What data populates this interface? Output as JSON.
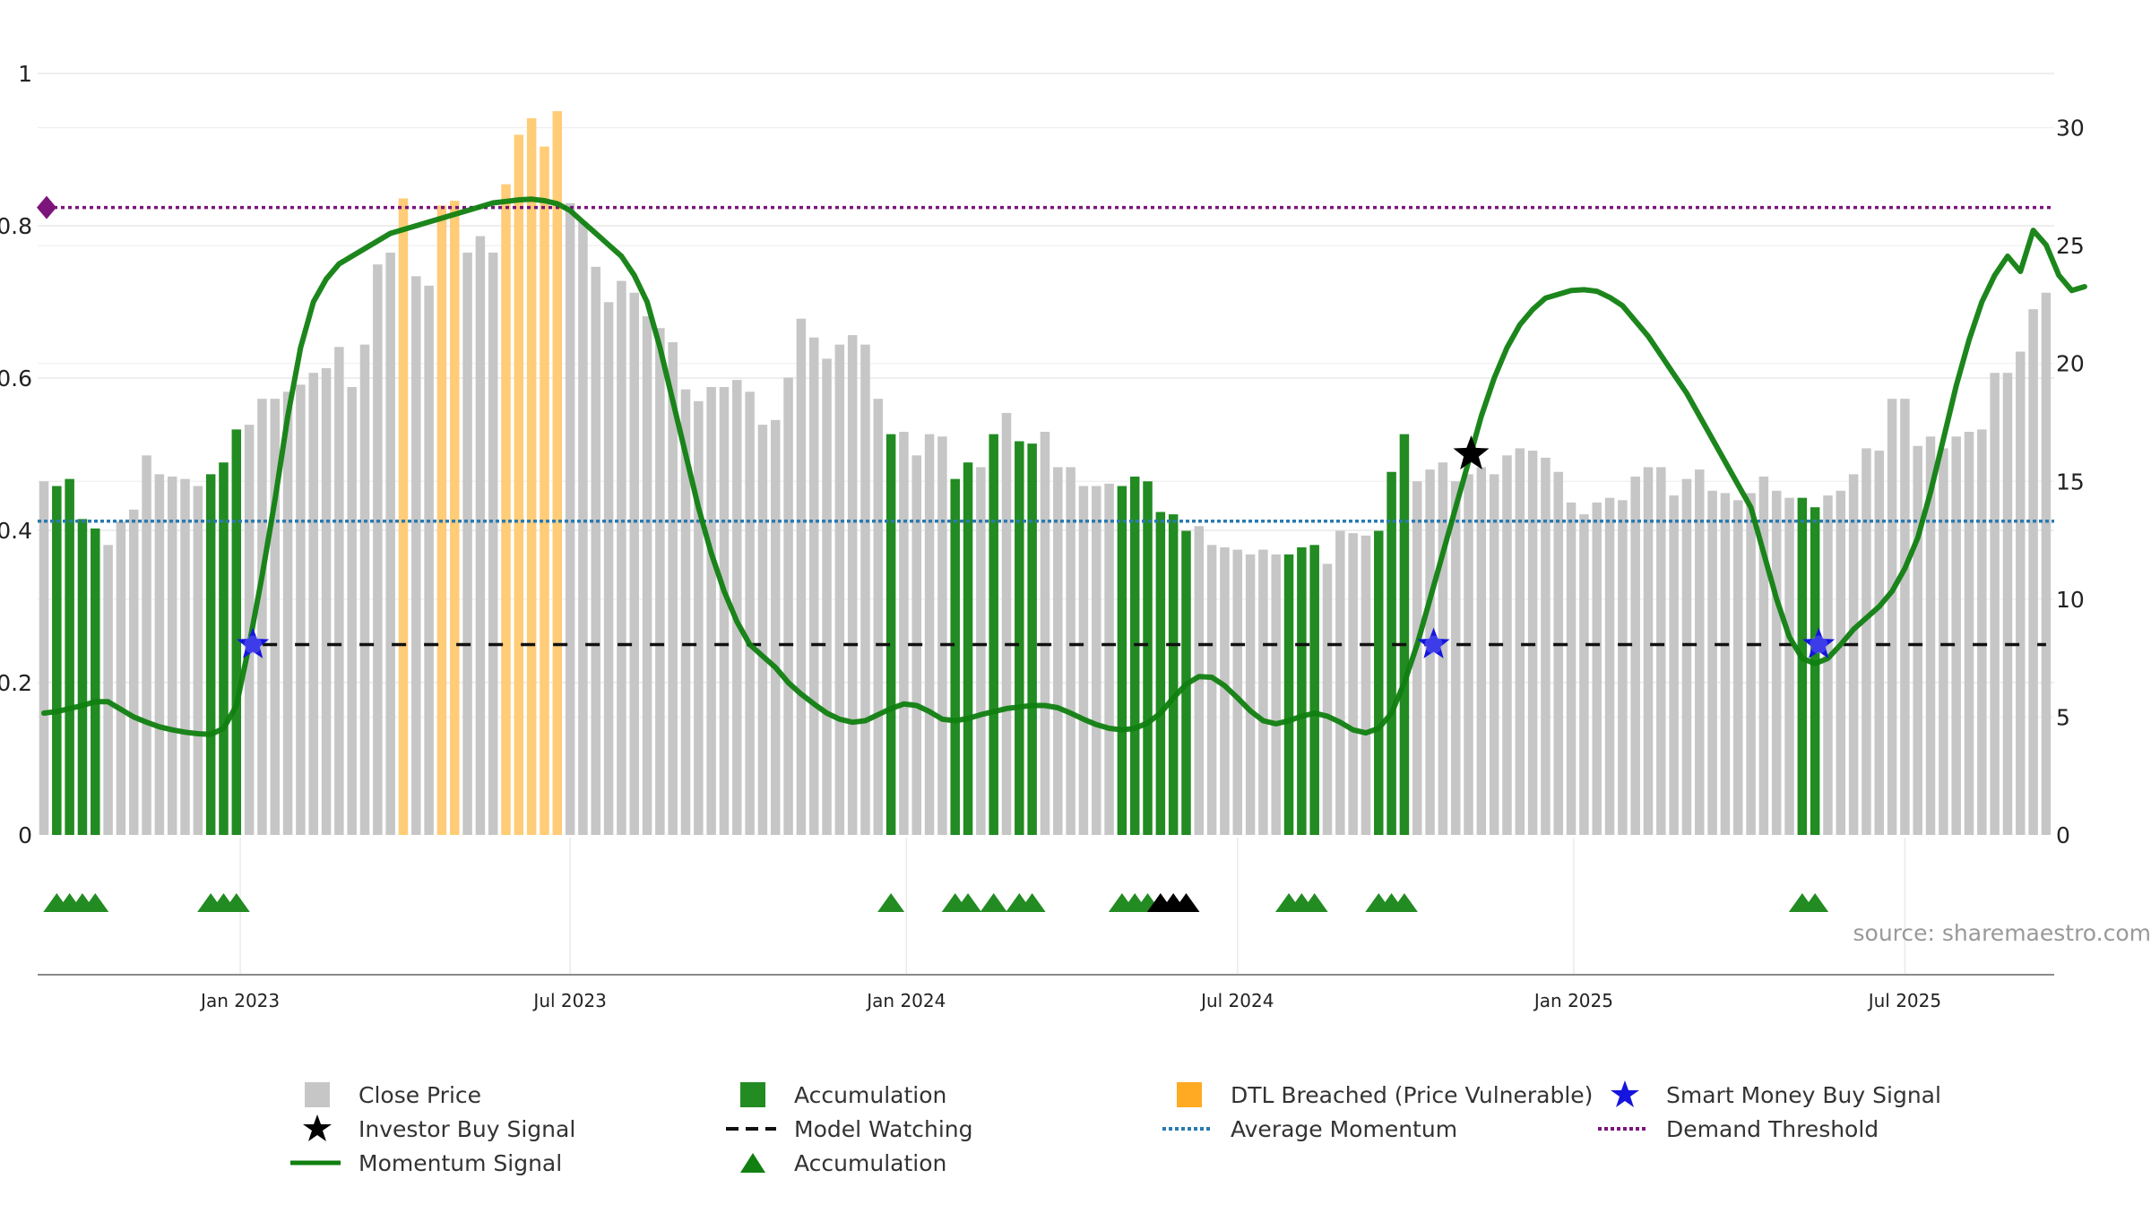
{
  "chart_data": {
    "type": "bar",
    "source_text": "source: sharemaestro.com",
    "left_axis": {
      "ticks": [
        0,
        0.2,
        0.4,
        0.6,
        0.8,
        1
      ],
      "labels": [
        "0",
        "0.2",
        "0.4",
        "0.6",
        "0.8",
        "1"
      ],
      "ylim": [
        0,
        1
      ]
    },
    "right_axis": {
      "ticks": [
        0,
        5,
        10,
        15,
        20,
        25,
        30
      ],
      "labels": [
        "0",
        "5",
        "10",
        "15",
        "20",
        "25",
        "30"
      ],
      "ylim": [
        0,
        32.3
      ]
    },
    "x_axis": {
      "labels": [
        "Jan 2023",
        "Jul 2023",
        "Jan 2024",
        "Jul 2024",
        "Jan 2025",
        "Jul 2025"
      ],
      "label_bar_index": [
        15.3,
        41,
        67.2,
        93,
        119.2,
        145
      ],
      "bar_count": 157
    },
    "close_price_bars": [
      15,
      14.8,
      15.1,
      13.4,
      13,
      12.3,
      13.3,
      13.8,
      16.1,
      15.3,
      15.2,
      15.1,
      14.8,
      15.3,
      15.8,
      17.2,
      17.4,
      18.5,
      18.5,
      18.8,
      19.1,
      19.6,
      19.8,
      20.7,
      19,
      20.8,
      24.2,
      24.7,
      27,
      23.7,
      23.3,
      26.7,
      26.9,
      24.7,
      25.4,
      24.7,
      27.6,
      29.7,
      30.4,
      29.2,
      30.7,
      26.8,
      26,
      24.1,
      22.6,
      23.5,
      23,
      22,
      21.5,
      20.9,
      18.9,
      18.4,
      19,
      19,
      19.3,
      18.8,
      17.4,
      17.6,
      19.4,
      21.9,
      21.1,
      20.2,
      20.8,
      21.2,
      20.8,
      18.5,
      17,
      17.1,
      16.1,
      17,
      16.9,
      15.1,
      15.8,
      15.6,
      17,
      17.9,
      16.7,
      16.6,
      17.1,
      15.6,
      15.6,
      14.8,
      14.8,
      14.9,
      14.8,
      15.2,
      15,
      13.7,
      13.6,
      12.9,
      13.1,
      12.3,
      12.2,
      12.1,
      11.9,
      12.1,
      11.9,
      11.9,
      12.2,
      12.3,
      11.5,
      12.9,
      12.8,
      12.7,
      12.9,
      15.4,
      17,
      15,
      15.5,
      15.8,
      15,
      15.3,
      15.6,
      15.3,
      16.1,
      16.4,
      16.3,
      16,
      15.4,
      14.1,
      13.6,
      14.1,
      14.3,
      14.2,
      15.2,
      15.6,
      15.6,
      14.4,
      15.1,
      15.5,
      14.6,
      14.5,
      14.2,
      14.5,
      15.2,
      14.6,
      14.3,
      14.3,
      13.9,
      14.4,
      14.6,
      15.3,
      16.4,
      16.3,
      18.5,
      18.5,
      16.5,
      16.9,
      16.4,
      16.9,
      17.1,
      17.2,
      19.6,
      19.6,
      20.5,
      22.3,
      23
    ],
    "accumulation_bars_idx": [
      1,
      2,
      3,
      4,
      13,
      14,
      15,
      66,
      71,
      72,
      74,
      76,
      77,
      84,
      85,
      86,
      87,
      88,
      89,
      97,
      98,
      99,
      104,
      105,
      106,
      137,
      138
    ],
    "dtl_breached_idx": [
      28,
      31,
      32,
      36,
      37,
      38,
      39,
      40
    ],
    "momentum_signal": [
      0.16,
      0.162,
      0.166,
      0.17,
      0.175,
      0.175,
      0.165,
      0.155,
      0.148,
      0.142,
      0.138,
      0.135,
      0.133,
      0.132,
      0.14,
      0.17,
      0.25,
      0.34,
      0.44,
      0.55,
      0.64,
      0.7,
      0.73,
      0.75,
      0.76,
      0.77,
      0.78,
      0.79,
      0.795,
      0.8,
      0.805,
      0.81,
      0.815,
      0.82,
      0.825,
      0.83,
      0.832,
      0.834,
      0.835,
      0.833,
      0.829,
      0.82,
      0.805,
      0.79,
      0.775,
      0.76,
      0.735,
      0.7,
      0.64,
      0.57,
      0.5,
      0.43,
      0.37,
      0.32,
      0.28,
      0.25,
      0.235,
      0.22,
      0.2,
      0.185,
      0.172,
      0.16,
      0.152,
      0.148,
      0.15,
      0.158,
      0.166,
      0.172,
      0.17,
      0.162,
      0.152,
      0.15,
      0.153,
      0.158,
      0.162,
      0.166,
      0.168,
      0.17,
      0.17,
      0.167,
      0.16,
      0.152,
      0.145,
      0.14,
      0.138,
      0.14,
      0.147,
      0.16,
      0.18,
      0.198,
      0.208,
      0.207,
      0.196,
      0.18,
      0.163,
      0.15,
      0.146,
      0.15,
      0.156,
      0.16,
      0.156,
      0.148,
      0.138,
      0.134,
      0.14,
      0.16,
      0.2,
      0.25,
      0.31,
      0.37,
      0.43,
      0.49,
      0.55,
      0.6,
      0.64,
      0.67,
      0.69,
      0.705,
      0.71,
      0.715,
      0.716,
      0.714,
      0.706,
      0.695,
      0.675,
      0.655,
      0.63,
      0.605,
      0.58,
      0.55,
      0.52,
      0.49,
      0.46,
      0.43,
      0.37,
      0.31,
      0.26,
      0.232,
      0.225,
      0.232,
      0.25,
      0.27,
      0.285,
      0.3,
      0.32,
      0.35,
      0.39,
      0.45,
      0.52,
      0.59,
      0.65,
      0.7,
      0.735,
      0.76,
      0.74,
      0.794,
      0.775,
      0.735,
      0.715,
      0.72
    ],
    "average_momentum": 0.412,
    "demand_threshold": 0.824,
    "model_watching_level": 0.25,
    "model_watching_start_idx": 16,
    "smart_money_buy_signals": [
      {
        "idx": 16,
        "y": 0.25
      },
      {
        "idx": 108,
        "y": 0.25
      },
      {
        "idx": 138,
        "y": 0.25
      }
    ],
    "investor_buy_signals": [
      {
        "idx": 111,
        "y": 0.5
      }
    ],
    "accumulation_triangles_green_idx": [
      1,
      2,
      3,
      4,
      13,
      14,
      15,
      66,
      71,
      72,
      74,
      76,
      77,
      84,
      85,
      86,
      97,
      98,
      99,
      104,
      105,
      106,
      137,
      138
    ],
    "accumulation_triangles_black_idx": [
      87,
      88,
      89
    ],
    "legend": [
      {
        "label": "Close Price",
        "symbol": "gray-square"
      },
      {
        "label": "Accumulation",
        "symbol": "green-square"
      },
      {
        "label": "DTL Breached (Price Vulnerable)",
        "symbol": "orange-square"
      },
      {
        "label": "Smart Money Buy Signal",
        "symbol": "blue-star"
      },
      {
        "label": "Investor Buy Signal",
        "symbol": "black-star"
      },
      {
        "label": "Model Watching",
        "symbol": "dashed-line"
      },
      {
        "label": "Average Momentum",
        "symbol": "blue-dotted-line"
      },
      {
        "label": "Demand Threshold",
        "symbol": "purple-dotted-line"
      },
      {
        "label": "Momentum Signal",
        "symbol": "green-line"
      },
      {
        "label": "Accumulation",
        "symbol": "green-triangle"
      }
    ],
    "colors": {
      "close_price": "#c6c6c6",
      "accumulation": "#228b22",
      "dtl_breached": "#ffcc77",
      "momentum": "#108010",
      "smart_money_star": "#1515dd",
      "investor_star": "#000000",
      "average_momentum": "#2a7ab0",
      "demand_threshold": "#7b147b",
      "gridline": "#e8e8e8",
      "axis_text": "#222222",
      "source_text": "#999999"
    }
  }
}
